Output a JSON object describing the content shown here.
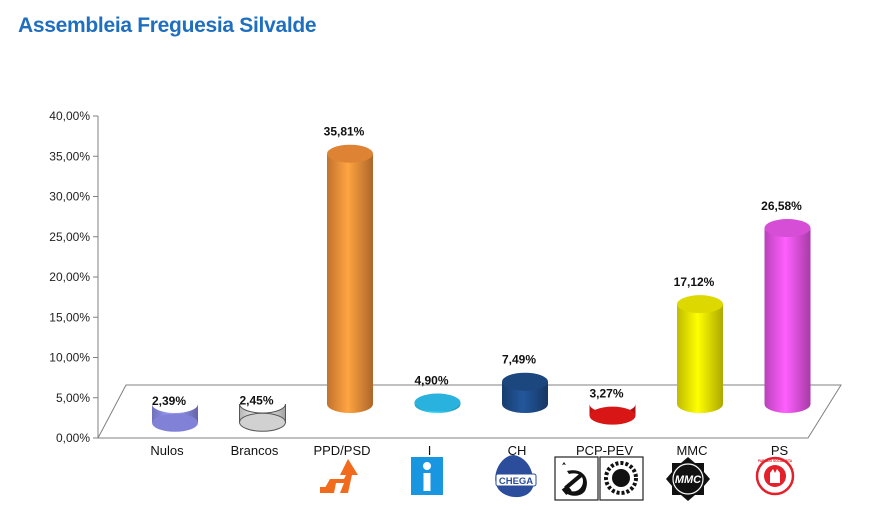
{
  "header": {
    "title": "Assembleia Freguesia Silvalde"
  },
  "chart_data": {
    "type": "bar",
    "title": "Assembleia Freguesia Silvalde",
    "xlabel": "",
    "ylabel": "",
    "ylim": [
      0,
      40
    ],
    "yticks": [
      "0,00%",
      "5,00%",
      "10,00%",
      "15,00%",
      "20,00%",
      "25,00%",
      "30,00%",
      "35,00%",
      "40,00%"
    ],
    "categories": [
      "Nulos",
      "Brancos",
      "PPD/PSD",
      "I",
      "CH",
      "PCP-PEV",
      "MMC",
      "PS"
    ],
    "values": [
      2.39,
      2.45,
      35.81,
      4.9,
      7.49,
      3.27,
      17.12,
      26.58
    ],
    "data_labels": [
      "2,39%",
      "2,45%",
      "35,81%",
      "4,90%",
      "7,49%",
      "3,27%",
      "17,12%",
      "26,58%"
    ],
    "colors": [
      "#8f8ff0",
      "#e8e8e8",
      "#f7923a",
      "#2ec6f5",
      "#1f4e8c",
      "#f01818",
      "#f5f000",
      "#ee55ee"
    ],
    "grid": false,
    "legend": "none",
    "logos": [
      "",
      "",
      "psd-logo-icon",
      "independent-i-icon",
      "chega-logo-icon",
      "cdu-logo-icon",
      "mmc-logo-icon",
      "ps-logo-icon"
    ]
  },
  "logo_text": {
    "chega": "CHEGA",
    "mmc": "MMC",
    "i": "i",
    "ps": "PARTIDO SOCIALISTA"
  }
}
